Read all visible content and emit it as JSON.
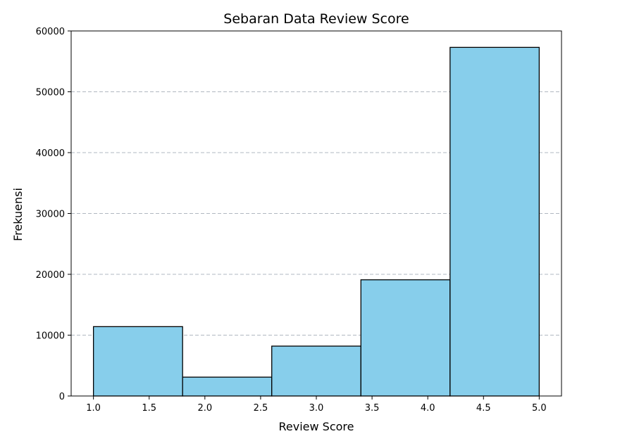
{
  "chart_data": {
    "type": "bar",
    "title": "Sebaran Data Review Score",
    "xlabel": "Review Score",
    "ylabel": "Frekuensi",
    "bins": [
      {
        "x0": 1.0,
        "x1": 1.8,
        "value": 11400
      },
      {
        "x0": 1.8,
        "x1": 2.6,
        "value": 3100
      },
      {
        "x0": 2.6,
        "x1": 3.4,
        "value": 8200
      },
      {
        "x0": 3.4,
        "x1": 4.2,
        "value": 19100
      },
      {
        "x0": 4.2,
        "x1": 5.0,
        "value": 57300
      }
    ],
    "xlim": [
      0.8,
      5.2
    ],
    "ylim": [
      0,
      60000
    ],
    "xticks": [
      "1.0",
      "1.5",
      "2.0",
      "2.5",
      "3.0",
      "3.5",
      "4.0",
      "4.5",
      "5.0"
    ],
    "yticks": [
      "0",
      "10000",
      "20000",
      "30000",
      "40000",
      "50000",
      "60000"
    ],
    "grid": "y-dashed",
    "bar_color": "#87ceeb",
    "edge_color": "#000000",
    "grid_color": "#b0b8c0"
  }
}
